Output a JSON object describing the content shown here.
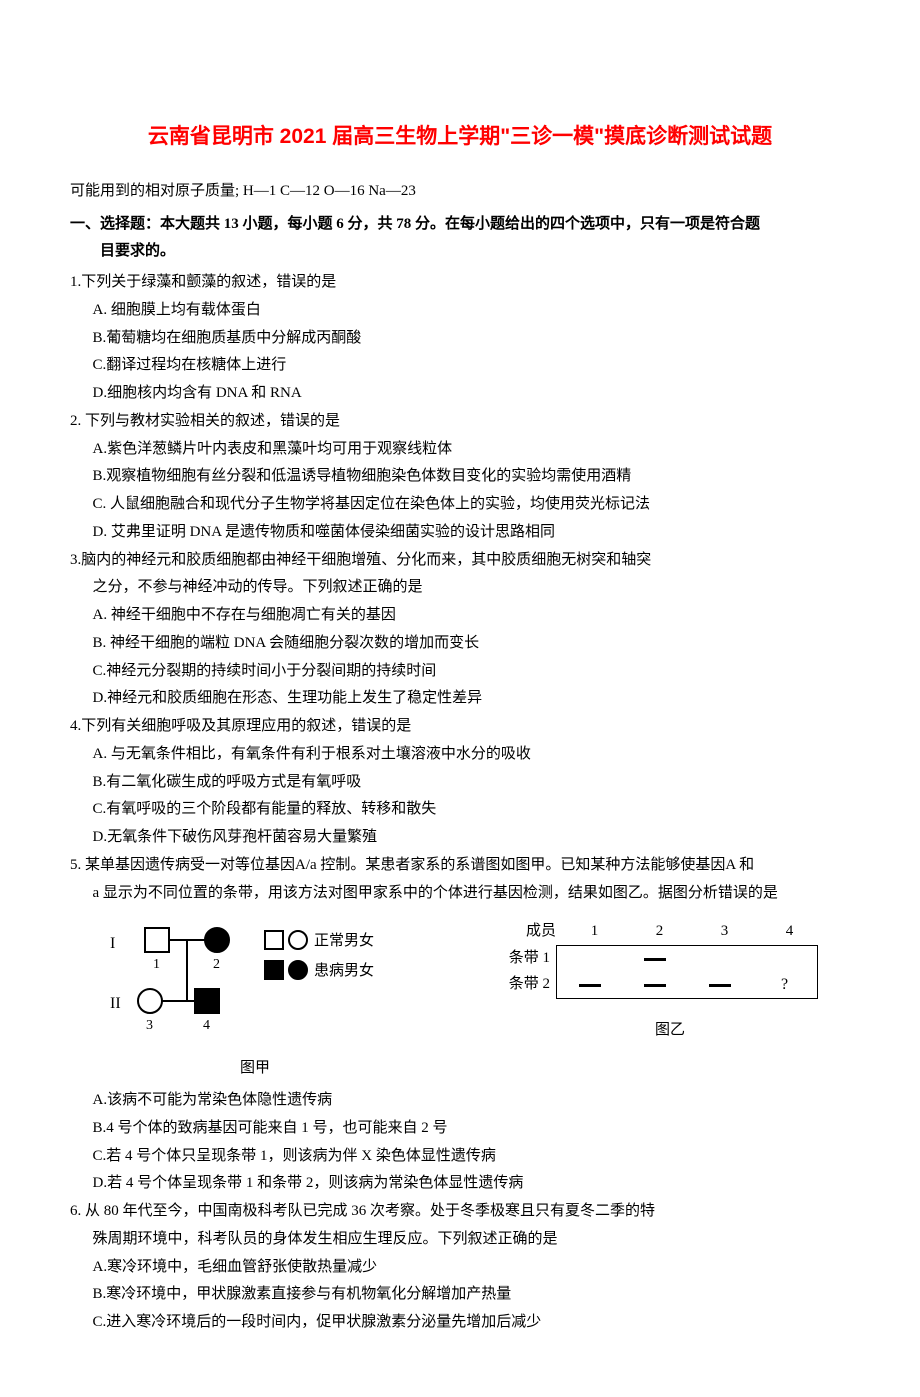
{
  "title": "云南省昆明市 2021 届高三生物上学期\"三诊一模\"摸底诊断测试试题",
  "atomic_note": "可能用到的相对原子质量; H—1 C—12 O—16 Na—23",
  "section1": {
    "line1": "一、选择题：本大题共 13 小题，每小题 6 分，共 78 分。在每小题给出的四个选项中，只有一项是符合题",
    "line2": "目要求的。"
  },
  "q1": {
    "stem": "1.下列关于绿藻和颤藻的叙述，错误的是",
    "A": "A. 细胞膜上均有载体蛋白",
    "B": "B.葡萄糖均在细胞质基质中分解成丙酮酸",
    "C": "C.翻译过程均在核糖体上进行",
    "D": "D.细胞核内均含有 DNA 和 RNA"
  },
  "q2": {
    "stem": "2. 下列与教材实验相关的叙述，错误的是",
    "A": "A.紫色洋葱鳞片叶内表皮和黑藻叶均可用于观察线粒体",
    "B": "B.观察植物细胞有丝分裂和低温诱导植物细胞染色体数目变化的实验均需使用酒精",
    "C": "C. 人鼠细胞融合和现代分子生物学将基因定位在染色体上的实验，均使用荧光标记法",
    "D": "D. 艾弗里证明 DNA 是遗传物质和噬菌体侵染细菌实验的设计思路相同"
  },
  "q3": {
    "stem1": "3.脑内的神经元和胶质细胞都由神经干细胞增殖、分化而来，其中胶质细胞无树突和轴突",
    "stem2": "之分，不参与神经冲动的传导。下列叙述正确的是",
    "A": "A. 神经干细胞中不存在与细胞凋亡有关的基因",
    "B": "B. 神经干细胞的端粒 DNA 会随细胞分裂次数的增加而变长",
    "C": "C.神经元分裂期的持续时间小于分裂间期的持续时间",
    "D": "D.神经元和胶质细胞在形态、生理功能上发生了稳定性差异"
  },
  "q4": {
    "stem": "4.下列有关细胞呼吸及其原理应用的叙述，错误的是",
    "A": "A. 与无氧条件相比，有氧条件有利于根系对土壤溶液中水分的吸收",
    "B": "B.有二氧化碳生成的呼吸方式是有氧呼吸",
    "C": "C.有氧呼吸的三个阶段都有能量的释放、转移和散失",
    "D": "D.无氧条件下破伤风芽孢杆菌容易大量繁殖"
  },
  "q5": {
    "stem1": "5. 某单基因遗传病受一对等位基因A/a 控制。某患者家系的系谱图如图甲。已知某种方法能够使基因A 和",
    "stem2": "a 显示为不同位置的条带，用该方法对图甲家系中的个体进行基因检测，结果如图乙。据图分析错误的是",
    "A": "A.该病不可能为常染色体隐性遗传病",
    "B": "B.4 号个体的致病基因可能来自 1 号，也可能来自 2 号",
    "C": "C.若 4 号个体只呈现条带 1，则该病为伴 X 染色体显性遗传病",
    "D": "D.若 4 号个体呈现条带 1 和条带 2，则该病为常染色体显性遗传病"
  },
  "pedigree": {
    "caption": "图甲",
    "gen_labels": [
      "I",
      "II"
    ],
    "person_labels": [
      "1",
      "2",
      "3",
      "4"
    ],
    "legend_normal": "正常男女",
    "legend_affected": "患病男女",
    "stroke": "#000000",
    "fill_affected": "#000000",
    "fill_normal": "#ffffff"
  },
  "band_fig": {
    "caption": "图乙",
    "row_header_label": "成员",
    "row1_label": "条带 1",
    "row2_label": "条带 2",
    "columns": [
      "1",
      "2",
      "3",
      "4"
    ],
    "row1": [
      false,
      true,
      false,
      false
    ],
    "row2": [
      true,
      true,
      true,
      "question"
    ],
    "dash_color": "#000000",
    "border_color": "#000000",
    "qmark": "?"
  },
  "q6": {
    "stem1": "6. 从 80 年代至今，中国南极科考队已完成 36 次考察。处于冬季极寒且只有夏冬二季的特",
    "stem2": "殊周期环境中，科考队员的身体发生相应生理反应。下列叙述正确的是",
    "A": "A.寒冷环境中，毛细血管舒张使散热量减少",
    "B": "B.寒冷环境中，甲状腺激素直接参与有机物氧化分解增加产热量",
    "C": "C.进入寒冷环境后的一段时间内，促甲状腺激素分泌量先增加后减少"
  }
}
